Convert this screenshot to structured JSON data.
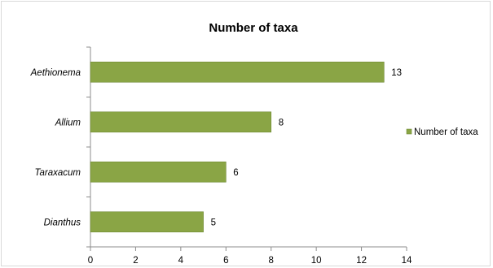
{
  "chart_data": {
    "type": "bar",
    "orientation": "horizontal",
    "title": "Number of taxa",
    "categories": [
      "Aethionema",
      "Allium",
      "Taraxacum",
      "Dianthus"
    ],
    "series": [
      {
        "name": "Number of taxa",
        "values": [
          13,
          8,
          6,
          5
        ]
      }
    ],
    "xlim": [
      0,
      14
    ],
    "x_ticks": [
      0,
      2,
      4,
      6,
      8,
      10,
      12,
      14
    ],
    "xlabel": "",
    "ylabel": "",
    "grid": false,
    "legend_position": "right",
    "data_labels": true,
    "colors": {
      "bar": "#8aa545",
      "bar_stroke": "#6f8a36",
      "axis": "#8c8c8c"
    }
  }
}
